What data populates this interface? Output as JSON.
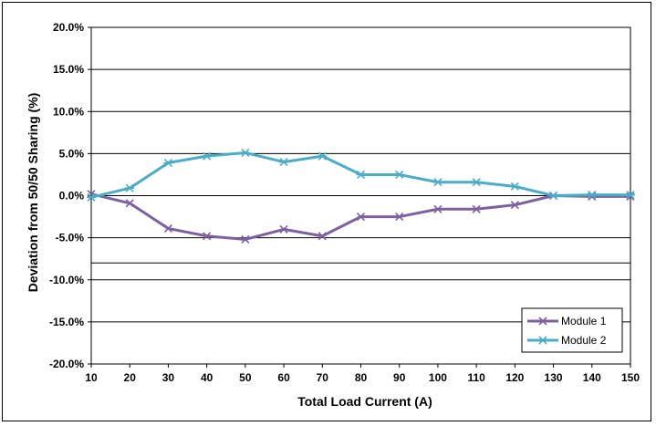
{
  "chart_data": {
    "type": "line",
    "xlabel": "Total Load Current (A)",
    "ylabel": "Deviation from 50/50 Sharing (%)",
    "x": [
      10,
      20,
      30,
      40,
      50,
      60,
      70,
      80,
      90,
      100,
      110,
      120,
      130,
      140,
      150
    ],
    "x_ticks": [
      "10",
      "20",
      "30",
      "40",
      "50",
      "60",
      "70",
      "80",
      "90",
      "100",
      "110",
      "120",
      "130",
      "140",
      "150"
    ],
    "ylim": [
      -20,
      20
    ],
    "y_ticks": [
      "-20.0%",
      "-15.0%",
      "-10.0%",
      "-5.0%",
      "0.0%",
      "5.0%",
      "10.0%",
      "15.0%",
      "20.0%"
    ],
    "y_tick_values": [
      -20,
      -15,
      -10,
      -5,
      0,
      5,
      10,
      15,
      20
    ],
    "gridlines_y": [
      -15,
      -10,
      -8,
      -5,
      0,
      5,
      10,
      15
    ],
    "grid": true,
    "legend_position": "bottom-right",
    "series": [
      {
        "name": "Module 1",
        "color": "#7d60a0",
        "marker": "x",
        "values": [
          0.2,
          -0.9,
          -3.9,
          -4.8,
          -5.2,
          -4.0,
          -4.8,
          -2.5,
          -2.5,
          -1.6,
          -1.6,
          -1.1,
          0.0,
          -0.1,
          -0.1
        ]
      },
      {
        "name": "Module 2",
        "color": "#4bacc6",
        "marker": "asterisk",
        "values": [
          -0.2,
          0.9,
          3.9,
          4.7,
          5.1,
          4.0,
          4.7,
          2.5,
          2.5,
          1.6,
          1.6,
          1.1,
          0.0,
          0.1,
          0.1
        ]
      }
    ]
  }
}
